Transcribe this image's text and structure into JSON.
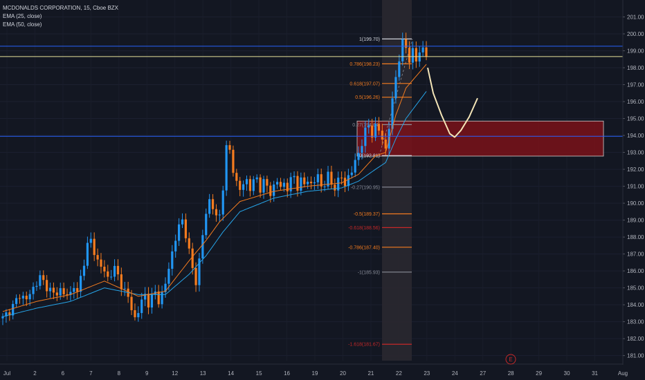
{
  "legend": {
    "title": "MCDONALDS CORPORATION, 15, Cboe BZX",
    "ema1": "EMA (25, close)",
    "ema2": "EMA (50, close)"
  },
  "colors": {
    "background": "#131722",
    "up": "#2196f3",
    "down": "#f57c1f",
    "ema25": "#f57c1f",
    "ema50": "#26a4e8",
    "blue_line": "#2962ff",
    "yellow_line": "#e6e39a",
    "zone_fill": "#7a1219",
    "zone_border": "#d0d0d0",
    "projection": "#f5e6b8",
    "fib_orange": "#f57c1f",
    "fib_red": "#c62828",
    "fib_gray": "#8a8e99",
    "fib_white": "#d1d4dc"
  },
  "chart_data": {
    "type": "candlestick",
    "title": "MCDONALDS CORPORATION, 15, Cboe BZX",
    "ylim": [
      180.7,
      202.0
    ],
    "y_ticks": [
      181.0,
      182.0,
      183.0,
      184.0,
      185.0,
      186.0,
      187.0,
      188.0,
      189.0,
      190.0,
      191.0,
      192.0,
      193.0,
      194.0,
      195.0,
      196.0,
      197.0,
      198.0,
      199.0,
      200.0,
      201.0
    ],
    "x_ticks": [
      "Jul",
      "2",
      "6",
      "7",
      "8",
      "9",
      "12",
      "13",
      "14",
      "15",
      "16",
      "19",
      "20",
      "21",
      "22",
      "23",
      "24",
      "27",
      "28",
      "29",
      "30",
      "31",
      "Aug"
    ],
    "price_path": [
      [
        0,
        183.2
      ],
      [
        3,
        183.9
      ],
      [
        5,
        184.6
      ],
      [
        7,
        184.3
      ],
      [
        9,
        185.0
      ],
      [
        11,
        185.6
      ],
      [
        13,
        185.1
      ],
      [
        15,
        184.6
      ],
      [
        17,
        184.9
      ],
      [
        18.5,
        184.5
      ],
      [
        20,
        184.7
      ],
      [
        21,
        185.2
      ],
      [
        22,
        184.6
      ],
      [
        23,
        185.6
      ],
      [
        24,
        186.6
      ],
      [
        25,
        187.5
      ],
      [
        26,
        187.8
      ],
      [
        27,
        187.1
      ],
      [
        28,
        186.6
      ],
      [
        29,
        186.3
      ],
      [
        30,
        185.9
      ],
      [
        31,
        185.6
      ],
      [
        32,
        185.9
      ],
      [
        33,
        186.1
      ],
      [
        34,
        185.7
      ],
      [
        35,
        185.2
      ],
      [
        36,
        184.8
      ],
      [
        37,
        184.4
      ],
      [
        38,
        183.8
      ],
      [
        39,
        183.2
      ],
      [
        40,
        183.6
      ],
      [
        41,
        184.2
      ],
      [
        42,
        184.6
      ],
      [
        43,
        184.1
      ],
      [
        44,
        184.4
      ],
      [
        45,
        184.7
      ],
      [
        46,
        184.3
      ],
      [
        47,
        184.6
      ],
      [
        48,
        185.2
      ],
      [
        49,
        186.2
      ],
      [
        50,
        187.1
      ],
      [
        51,
        187.9
      ],
      [
        52,
        188.6
      ],
      [
        53,
        189.0
      ],
      [
        54,
        188.2
      ],
      [
        55,
        187.1
      ],
      [
        56,
        186.1
      ],
      [
        57,
        185.4
      ],
      [
        58,
        186.6
      ],
      [
        59,
        188.1
      ],
      [
        60,
        189.4
      ],
      [
        61,
        190.2
      ],
      [
        62,
        189.8
      ],
      [
        63,
        189.1
      ],
      [
        64,
        189.3
      ],
      [
        64.8,
        190.6
      ],
      [
        65.5,
        192.1
      ],
      [
        66,
        193.2
      ],
      [
        67,
        193.1
      ],
      [
        68,
        192.0
      ],
      [
        69,
        191.2
      ],
      [
        70,
        190.8
      ],
      [
        71,
        191.1
      ],
      [
        72,
        191.4
      ],
      [
        73,
        190.9
      ],
      [
        74,
        191.2
      ],
      [
        75,
        191.5
      ],
      [
        76,
        190.9
      ],
      [
        77,
        191.2
      ],
      [
        78,
        191.0
      ],
      [
        79,
        190.6
      ],
      [
        80,
        191.0
      ],
      [
        81,
        191.3
      ],
      [
        82,
        190.9
      ],
      [
        83,
        191.2
      ],
      [
        84,
        190.9
      ],
      [
        85,
        191.3
      ],
      [
        86,
        191.6
      ],
      [
        87,
        191.0
      ],
      [
        88,
        191.3
      ],
      [
        89,
        191.1
      ],
      [
        90,
        191.4
      ],
      [
        91,
        191.1
      ],
      [
        92,
        191.3
      ],
      [
        93,
        191.6
      ],
      [
        94,
        191.0
      ],
      [
        95,
        191.2
      ],
      [
        96,
        191.6
      ],
      [
        97,
        191.1
      ],
      [
        98,
        191.0
      ],
      [
        99,
        191.3
      ],
      [
        100,
        191.5
      ],
      [
        101,
        191.1
      ],
      [
        102,
        191.6
      ],
      [
        103,
        191.9
      ],
      [
        104,
        192.4
      ],
      [
        105,
        193.0
      ],
      [
        106,
        193.6
      ],
      [
        107,
        194.2
      ],
      [
        108,
        194.6
      ],
      [
        109,
        194.1
      ],
      [
        110,
        194.5
      ],
      [
        111,
        194.3
      ],
      [
        112,
        193.8
      ],
      [
        113,
        193.2
      ],
      [
        114,
        194.5
      ],
      [
        115,
        196.0
      ],
      [
        116,
        197.5
      ],
      [
        117,
        198.6
      ],
      [
        118,
        199.4
      ],
      [
        119,
        199.2
      ],
      [
        120,
        198.5
      ],
      [
        121,
        199.0
      ],
      [
        122,
        198.4
      ],
      [
        123,
        198.9
      ],
      [
        124,
        199.2
      ],
      [
        125,
        198.8
      ]
    ],
    "ema25_path": [
      [
        0,
        183.6
      ],
      [
        10,
        184.2
      ],
      [
        20,
        184.6
      ],
      [
        30,
        185.4
      ],
      [
        40,
        184.5
      ],
      [
        48,
        184.8
      ],
      [
        55,
        186.6
      ],
      [
        60,
        187.8
      ],
      [
        64,
        188.9
      ],
      [
        70,
        190.1
      ],
      [
        80,
        190.7
      ],
      [
        90,
        191.0
      ],
      [
        100,
        191.2
      ],
      [
        105,
        191.7
      ],
      [
        110,
        192.8
      ],
      [
        113,
        193.0
      ],
      [
        116,
        195.2
      ],
      [
        119,
        196.8
      ],
      [
        122,
        197.5
      ],
      [
        125,
        198.2
      ]
    ],
    "ema50_path": [
      [
        0,
        183.3
      ],
      [
        10,
        183.8
      ],
      [
        20,
        184.2
      ],
      [
        30,
        185.0
      ],
      [
        40,
        184.6
      ],
      [
        48,
        184.6
      ],
      [
        55,
        185.8
      ],
      [
        60,
        186.9
      ],
      [
        65,
        188.3
      ],
      [
        70,
        189.5
      ],
      [
        80,
        190.3
      ],
      [
        90,
        190.7
      ],
      [
        100,
        190.9
      ],
      [
        105,
        191.3
      ],
      [
        110,
        192.0
      ],
      [
        113,
        192.4
      ],
      [
        116,
        193.8
      ],
      [
        119,
        195.0
      ],
      [
        122,
        195.8
      ],
      [
        125,
        196.6
      ]
    ],
    "fib_levels": [
      {
        "label": "1(199.70)",
        "price": 199.7,
        "color": "fib_white"
      },
      {
        "label": "0.786(198.23)",
        "price": 198.23,
        "color": "fib_orange"
      },
      {
        "label": "0.618(197.07)",
        "price": 197.07,
        "color": "fib_orange"
      },
      {
        "label": "0.5(196.26)",
        "price": 196.26,
        "color": "fib_orange"
      },
      {
        "label": "0.27(194.64)",
        "price": 194.64,
        "color": "fib_gray"
      },
      {
        "label": "0(192.81)",
        "price": 192.81,
        "color": "fib_white"
      },
      {
        "label": "-0.27(190.95)",
        "price": 190.95,
        "color": "fib_gray"
      },
      {
        "label": "-0.5(189.37)",
        "price": 189.37,
        "color": "fib_orange"
      },
      {
        "label": "-0.618(188.56)",
        "price": 188.56,
        "color": "fib_red"
      },
      {
        "label": "-0.786(187.40)",
        "price": 187.4,
        "color": "fib_orange"
      },
      {
        "label": "-1(185.93)",
        "price": 185.93,
        "color": "fib_gray"
      },
      {
        "label": "-1.618(181.67)",
        "price": 181.67,
        "color": "fib_red"
      }
    ],
    "horizontal_lines": [
      {
        "label": "199.27",
        "price": 199.27,
        "color": "blue_line",
        "tag_bg": "#2962ff",
        "tag_fg": "#ffffff"
      },
      {
        "label": "198.66",
        "price": 198.66,
        "color": "yellow_line",
        "tag_bg": "#f0e9a8",
        "tag_fg": "#131722"
      },
      {
        "label": "193.95",
        "price": 193.95,
        "color": "blue_line",
        "tag_bg": "#2962ff",
        "tag_fg": "#ffffff"
      }
    ],
    "zone": {
      "top": 194.85,
      "bottom": 192.78
    },
    "projection_path": [
      [
        198.0,
        198.0
      ],
      [
        196.5,
        196.6
      ],
      [
        195.2,
        194.8
      ],
      [
        194.1,
        194.3
      ],
      [
        193.9,
        194.1
      ],
      [
        194.3,
        194.6
      ],
      [
        195.1,
        195.3
      ],
      [
        196.2,
        196.2
      ]
    ],
    "earnings_marker": "E"
  }
}
